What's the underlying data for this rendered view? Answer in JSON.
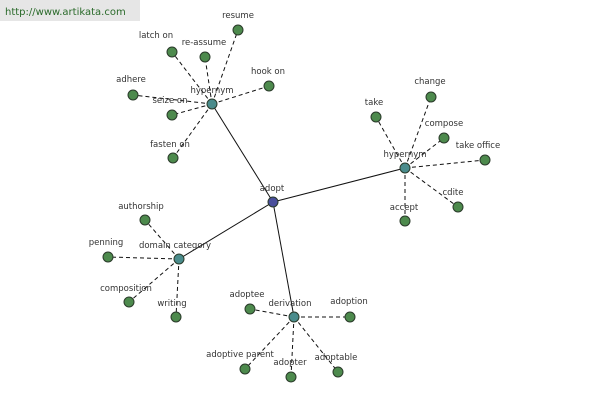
{
  "watermark": "http://www.artikata.com",
  "center": {
    "label": "adopt"
  },
  "groups": [
    {
      "label": "hypernym",
      "leaves": [
        "resume",
        "re-assume",
        "latch on",
        "hook on",
        "adhere",
        "seize on",
        "fasten on"
      ]
    },
    {
      "label": "hypernym",
      "leaves": [
        "take",
        "change",
        "compose",
        "take office",
        "cdite",
        "accept"
      ]
    },
    {
      "label": "domain category",
      "leaves": [
        "authorship",
        "penning",
        "composition",
        "writing"
      ]
    },
    {
      "label": "derivation",
      "leaves": [
        "adoptee",
        "adoption",
        "adoptive parent",
        "adopter",
        "adoptable"
      ]
    }
  ]
}
